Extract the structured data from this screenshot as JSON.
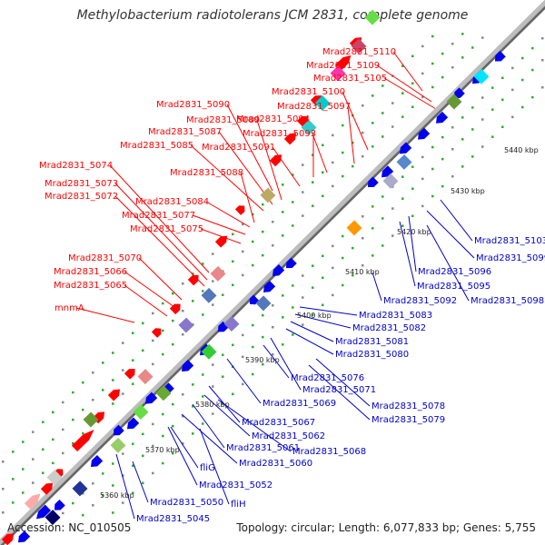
{
  "title": "Methylobacterium radiotolerans JCM 2831, complete genome",
  "footer": {
    "accession": "Accession: NC_010505",
    "topology": "Topology: circular; Length: 6,077,833 bp; Genes: 5,755"
  },
  "colors": {
    "forward_label": "#ff0000",
    "reverse_label": "#0000cc",
    "forward_gene": "#ff0000",
    "reverse_gene": "#0000ee",
    "backbone": "#999999",
    "tick_dot": "#33aa33"
  },
  "scale_labels": [
    "5360 kbp",
    "5370 kbp",
    "5380 kbp",
    "5390 kbp",
    "5400 kbp",
    "5410 kbp",
    "5420 kbp",
    "5430 kbp",
    "5440 kbp"
  ],
  "forward_labels": [
    "Mrad2831_5110",
    "Mrad2831_5109",
    "Mrad2831_5105",
    "Mrad2831_5100",
    "Mrad2831_5097",
    "Mrad2831_5094",
    "Mrad2831_5093",
    "Mrad2831_5091",
    "Mrad2831_5090",
    "Mrad2831_5089",
    "Mrad2831_5087",
    "Mrad2831_5085",
    "Mrad2831_5088",
    "Mrad2831_5074",
    "Mrad2831_5073",
    "Mrad2831_5072",
    "Mrad2831_5084",
    "Mrad2831_5077",
    "Mrad2831_5075",
    "Mrad2831_5070",
    "Mrad2831_5066",
    "Mrad2831_5065",
    "mnmA"
  ],
  "reverse_labels": [
    "Mrad2831_5103",
    "Mrad2831_5099",
    "Mrad2831_5096",
    "Mrad2831_5095",
    "Mrad2831_5098",
    "Mrad2831_5092",
    "Mrad2831_5083",
    "Mrad2831_5082",
    "Mrad2831_5081",
    "Mrad2831_5080",
    "Mrad2831_5076",
    "Mrad2831_5071",
    "Mrad2831_5069",
    "Mrad2831_5078",
    "Mrad2831_5079",
    "Mrad2831_5067",
    "Mrad2831_5062",
    "Mrad2831_5061",
    "Mrad2831_5068",
    "Mrad2831_5060",
    "fliG",
    "Mrad2831_5052",
    "Mrad2831_5050",
    "fliH",
    "Mrad2831_5045"
  ]
}
